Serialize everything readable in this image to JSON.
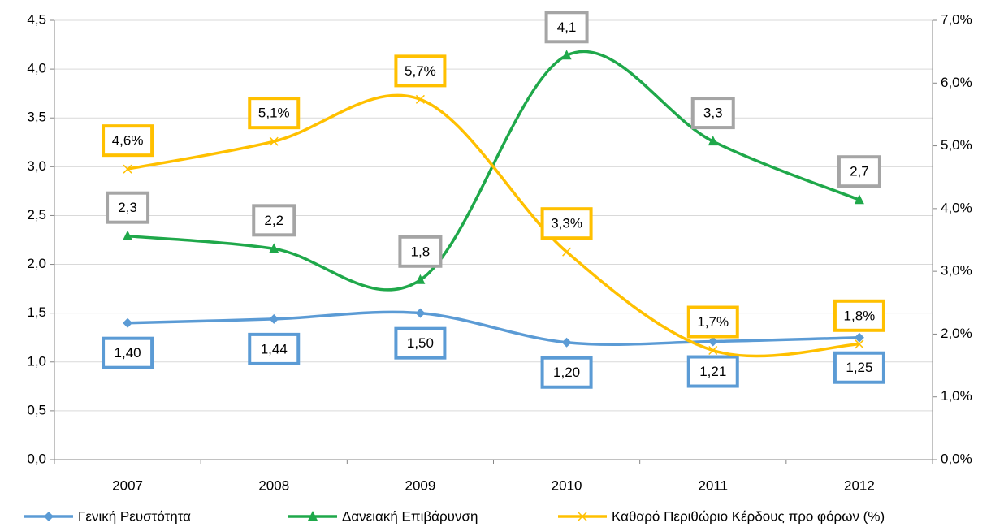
{
  "chart_data": {
    "type": "line",
    "categories": [
      "2007",
      "2008",
      "2009",
      "2010",
      "2011",
      "2012"
    ],
    "series": [
      {
        "name": "Γενική Ρευστότητα",
        "color": "#5b9bd5",
        "label_color": "#5b9bd5",
        "marker": "diamond",
        "values": [
          1.4,
          1.44,
          1.5,
          1.2,
          1.21,
          1.25
        ],
        "value_labels": [
          "1,40",
          "1,44",
          "1,50",
          "1,20",
          "1,21",
          "1,25"
        ]
      },
      {
        "name": "Δανειακή Επιβάρυνση",
        "color": "#1fa84a",
        "label_color": "#a5a5a5",
        "marker": "triangle",
        "values": [
          2.29,
          2.16,
          1.84,
          4.14,
          3.26,
          2.66
        ],
        "value_labels": [
          "2,3",
          "2,2",
          "1,8",
          "4,1",
          "3,3",
          "2,7"
        ]
      },
      {
        "name": "Καθαρό Περιθώριο Κέρδους προ φόρων (%)",
        "color": "#ffc000",
        "label_color": "#ffc000",
        "marker": "x",
        "axis": "y2",
        "values": [
          4.63,
          5.07,
          5.74,
          3.31,
          1.74,
          1.84
        ],
        "value_labels": [
          "4,6%",
          "5,1%",
          "5,7%",
          "3,3%",
          "1,7%",
          "1,8%"
        ]
      }
    ],
    "ylim": [
      0,
      4.5
    ],
    "yticks": [
      {
        "value": 0,
        "label": "0,0"
      },
      {
        "value": 0.5,
        "label": "0,5"
      },
      {
        "value": 1,
        "label": "1,0"
      },
      {
        "value": 1.5,
        "label": "1,5"
      },
      {
        "value": 2,
        "label": "2,0"
      },
      {
        "value": 2.5,
        "label": "2,5"
      },
      {
        "value": 3,
        "label": "3,0"
      },
      {
        "value": 3.5,
        "label": "3,5"
      },
      {
        "value": 4,
        "label": "4,0"
      },
      {
        "value": 4.5,
        "label": "4,5"
      }
    ],
    "y2lim": [
      0,
      7
    ],
    "y2ticks": [
      {
        "value": 0,
        "label": "0,0%"
      },
      {
        "value": 1,
        "label": "1,0%"
      },
      {
        "value": 2,
        "label": "2,0%"
      },
      {
        "value": 3,
        "label": "3,0%"
      },
      {
        "value": 4,
        "label": "4,0%"
      },
      {
        "value": 5,
        "label": "5,0%"
      },
      {
        "value": 6,
        "label": "6,0%"
      },
      {
        "value": 7,
        "label": "7,0%"
      }
    ],
    "grid": true,
    "smooth": true,
    "legend": "bottom"
  }
}
